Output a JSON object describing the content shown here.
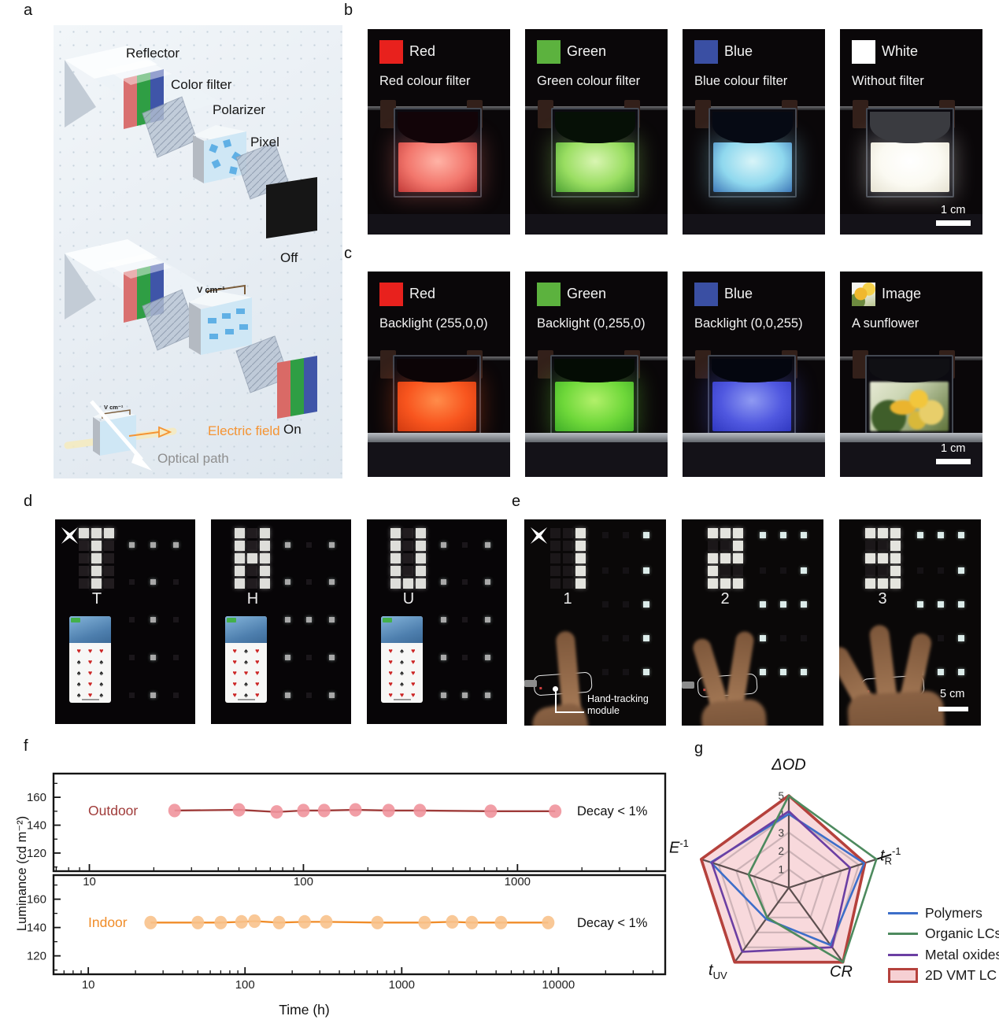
{
  "panel_labels": {
    "a": "a",
    "b": "b",
    "c": "c",
    "d": "d",
    "e": "e",
    "f": "f",
    "g": "g"
  },
  "panel_a": {
    "layer_labels": {
      "reflector": "Reflector",
      "color_filter": "Color filter",
      "polarizer": "Polarizer",
      "pixel": "Pixel"
    },
    "off_label": "Off",
    "on_label": "On",
    "voltage_label": "V cm⁻¹",
    "inset_voltage_label": "V cm⁻¹",
    "electric_field_label": "Electric field",
    "optical_path_label": "Optical path",
    "electric_field_color": "#f59433",
    "optical_path_color": "#8f8f8f",
    "filter_colors": {
      "red": "#d97070",
      "green": "#2f9e44",
      "blue": "#3f55a8"
    }
  },
  "panel_b": {
    "photos": [
      {
        "label": "Red",
        "caption": "Red colour filter",
        "swatch_color": "#e8211d",
        "glow_bright": "#ffb3a6",
        "glow_mid": "#f2766c",
        "glow_deep": "#c23a38",
        "top_color": "#120408",
        "x_marker": true
      },
      {
        "label": "Green",
        "caption": "Green colour filter",
        "swatch_color": "#5cb23e",
        "glow_bright": "#d9f5b2",
        "glow_mid": "#9ade62",
        "glow_deep": "#4da234",
        "top_color": "#061006"
      },
      {
        "label": "Blue",
        "caption": "Blue colour filter",
        "swatch_color": "#3a4fa3",
        "glow_bright": "#d8f4f8",
        "glow_mid": "#8fd8ee",
        "glow_deep": "#3f79b8",
        "top_color": "#060a14"
      },
      {
        "label": "White",
        "caption": "Without filter",
        "swatch_color": "#ffffff",
        "glow_bright": "#ffffff",
        "glow_mid": "#fbfaf2",
        "glow_deep": "#e6e2d2",
        "top_color": "#3a3b40",
        "scale_label": "1 cm"
      }
    ]
  },
  "panel_c": {
    "photos": [
      {
        "label": "Red",
        "caption": "Backlight (255,0,0)",
        "swatch_color": "#e8211d",
        "glow_bright": "#ff8c4a",
        "glow_mid": "#f8551e",
        "glow_deep": "#d03a10",
        "top_color": "#0c0406",
        "x_marker": true
      },
      {
        "label": "Green",
        "caption": "Backlight (0,255,0)",
        "swatch_color": "#5cb23e",
        "glow_bright": "#b2f06a",
        "glow_mid": "#6fd83a",
        "glow_deep": "#3fae28",
        "top_color": "#040c04"
      },
      {
        "label": "Blue",
        "caption": "Backlight (0,0,255)",
        "swatch_color": "#3a4fa3",
        "glow_bright": "#8f9af2",
        "glow_mid": "#5058e0",
        "glow_deep": "#3038c0",
        "top_color": "#04060f"
      },
      {
        "label": "Image",
        "caption": "A sunflower",
        "sunflower": true,
        "top_color": "#101014",
        "scale_label": "1 cm"
      }
    ]
  },
  "panel_d": {
    "phone_glyphs": {
      "on": "♥",
      "off": "♠",
      "on_color": "#cc2424",
      "off_color": "#202020"
    },
    "photos": [
      {
        "letter": "T",
        "pattern": [
          "111",
          "010",
          "010",
          "010",
          "010"
        ],
        "x_marker": true
      },
      {
        "letter": "H",
        "pattern": [
          "101",
          "101",
          "111",
          "101",
          "101"
        ]
      },
      {
        "letter": "U",
        "pattern": [
          "101",
          "101",
          "101",
          "101",
          "111"
        ]
      }
    ]
  },
  "panel_e": {
    "module_label": "Hand-tracking module",
    "scale_label": "5 cm",
    "photos": [
      {
        "digit": "1",
        "pattern": [
          "001",
          "001",
          "001",
          "001",
          "001"
        ],
        "fingers": 1,
        "x_marker": true,
        "show_module_label": true
      },
      {
        "digit": "2",
        "pattern": [
          "111",
          "001",
          "111",
          "100",
          "111"
        ],
        "fingers": 2
      },
      {
        "digit": "3",
        "pattern": [
          "111",
          "001",
          "111",
          "001",
          "111"
        ],
        "fingers": 3,
        "show_scale": true
      }
    ]
  },
  "chart_data": [
    {
      "id": "luminance-stability",
      "type": "line",
      "xlabel": "Time (h)",
      "ylabel": "Luminance (cd m⁻²)",
      "x_scale": "log",
      "ylim": [
        107,
        177
      ],
      "yticks": [
        120,
        140,
        160
      ],
      "grid": false,
      "subplots": [
        {
          "series": "Outdoor",
          "annotation": "Decay < 1%",
          "line_color": "#9e3a38",
          "marker_color": "#f0949c",
          "label_color": "#a03c3a",
          "xlim": [
            6.8,
            4900
          ],
          "xticks": [
            10,
            100,
            1000
          ],
          "x": [
            25,
            50,
            75,
            100,
            125,
            175,
            250,
            350,
            750,
            1500
          ],
          "y": [
            150.5,
            151,
            149.5,
            150.5,
            150.5,
            151,
            150.5,
            150.5,
            150,
            150
          ]
        },
        {
          "series": "Indoor",
          "annotation": "Decay < 1%",
          "line_color": "#f08c28",
          "marker_color": "#f8c28c",
          "label_color": "#f08c28",
          "xlim": [
            6,
            48000
          ],
          "xticks": [
            10,
            100,
            1000,
            10000
          ],
          "x": [
            25,
            50,
            70,
            95,
            115,
            165,
            240,
            330,
            700,
            1400,
            2100,
            2800,
            4300,
            8600
          ],
          "y": [
            143.5,
            143.5,
            143.5,
            144,
            144.5,
            143.5,
            144,
            144,
            143.5,
            143.5,
            144,
            143.5,
            143.5,
            143.5
          ]
        }
      ]
    },
    {
      "id": "material-comparison",
      "type": "radar",
      "ticks": [
        1,
        2,
        3,
        4,
        5
      ],
      "max": 5,
      "axes": [
        {
          "base": "ΔOD"
        },
        {
          "base": "t",
          "sub": "R",
          "sup": "-1"
        },
        {
          "base": "CR"
        },
        {
          "base": "t",
          "sub": "UV"
        },
        {
          "base": "E",
          "sup": "-1"
        }
      ],
      "legend_position": "right",
      "series": [
        {
          "name": "Polymers",
          "color": "#3d6ec9",
          "values": [
            4.0,
            4.3,
            3.85,
            2.1,
            4.45
          ]
        },
        {
          "name": "Organic LCs",
          "color": "#4d8a5e",
          "values": [
            5,
            5,
            5,
            2.0,
            2.3
          ]
        },
        {
          "name": "Metal oxides",
          "color": "#6b3fa3",
          "values": [
            4.15,
            3.5,
            4.0,
            4.3,
            4.4
          ]
        },
        {
          "name": "2D VMT LC",
          "color": "#b5413c",
          "fill": "#f6d0d3",
          "values": [
            5,
            4.35,
            5,
            5,
            5
          ]
        }
      ]
    }
  ]
}
